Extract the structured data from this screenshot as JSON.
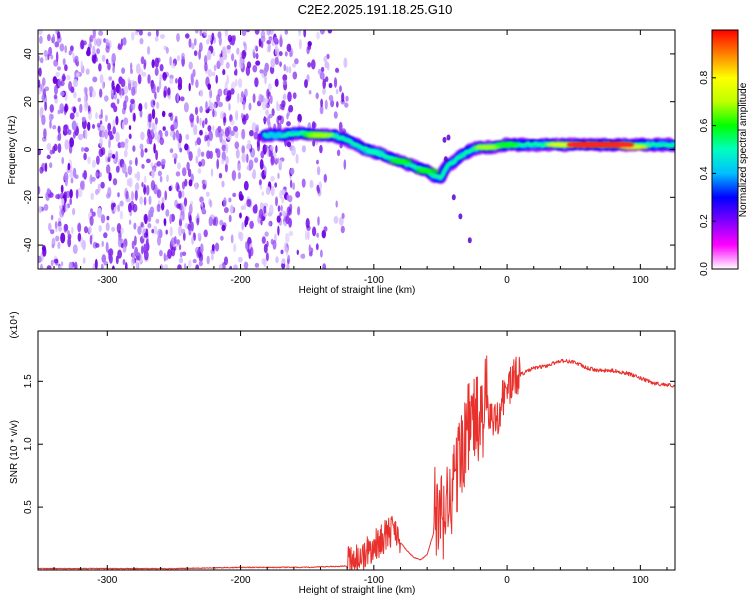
{
  "figure": {
    "title": "C2E2.2025.191.18.25.G10"
  },
  "chart_data": [
    {
      "type": "heatmap",
      "xlabel": "Height of straight line (km)",
      "ylabel": "Frequency (Hz)",
      "xlim": [
        -352,
        126
      ],
      "ylim": [
        -50,
        50
      ],
      "xticks": [
        -300,
        -200,
        -100,
        0,
        100
      ],
      "yticks": [
        -40,
        -20,
        0,
        20,
        40
      ],
      "grid": false,
      "colorbar": {
        "label": "Normalized spectral amplitude",
        "range": [
          0,
          1
        ],
        "ticks": [
          "0.0",
          "0.2",
          "0.4",
          "0.6",
          "0.8"
        ],
        "tick_values": [
          0.0,
          0.2,
          0.4,
          0.6,
          0.8
        ],
        "colors": [
          "#ffffff",
          "#ff00ff",
          "#7f00ff",
          "#0000ff",
          "#00bfff",
          "#00ffbf",
          "#00ff00",
          "#bfff00",
          "#ffff00",
          "#ff8000",
          "#ff0000"
        ]
      },
      "noise_region": {
        "x_from": -352,
        "x_to": -120,
        "colors": [
          "#6a00e0",
          "#8a30f0",
          "#b080f8",
          "#d8c0fc"
        ]
      },
      "ridge": [
        [
          -182,
          6
        ],
        [
          -170,
          6
        ],
        [
          -155,
          7
        ],
        [
          -140,
          6
        ],
        [
          -130,
          6
        ],
        [
          -120,
          4
        ],
        [
          -110,
          1
        ],
        [
          -100,
          -1
        ],
        [
          -90,
          -3
        ],
        [
          -80,
          -5
        ],
        [
          -70,
          -7
        ],
        [
          -60,
          -9
        ],
        [
          -55,
          -11
        ],
        [
          -50,
          -12
        ],
        [
          -45,
          -7
        ],
        [
          -40,
          -5
        ],
        [
          -35,
          -3
        ],
        [
          -30,
          -1
        ],
        [
          -20,
          1
        ],
        [
          -10,
          1
        ],
        [
          0,
          2
        ],
        [
          20,
          2
        ],
        [
          50,
          2
        ],
        [
          80,
          2
        ],
        [
          100,
          2
        ],
        [
          126,
          2
        ]
      ],
      "ridge_strong": [
        [
          -175,
          6,
          0.35
        ],
        [
          -145,
          6,
          0.55
        ],
        [
          -140,
          6,
          0.7
        ],
        [
          -100,
          -1,
          0.5
        ],
        [
          -80,
          -5,
          0.55
        ],
        [
          -60,
          -9,
          0.6
        ],
        [
          -15,
          1,
          0.7
        ],
        [
          0,
          2,
          0.6
        ],
        [
          40,
          2,
          0.8
        ],
        [
          60,
          2,
          0.95
        ],
        [
          80,
          2,
          0.95
        ],
        [
          95,
          1,
          0.8
        ]
      ],
      "spike_points": [
        [
          -47,
          4
        ],
        [
          -46,
          -4
        ],
        [
          -44,
          5
        ],
        [
          -40,
          -20
        ],
        [
          -35,
          -28
        ],
        [
          -28,
          -38
        ]
      ]
    },
    {
      "type": "line",
      "xlabel": "Height of straight line (km)",
      "ylabel": "SNR (10 * v/v)",
      "y_multiplier": "(x10⁴)",
      "xlim": [
        -352,
        126
      ],
      "ylim": [
        0,
        1.9
      ],
      "xticks": [
        -300,
        -200,
        -100,
        0,
        100
      ],
      "yticks": [
        "0.5",
        "1.0",
        "1.5"
      ],
      "ytick_values": [
        0.5,
        1.0,
        1.5
      ],
      "grid": false,
      "color": "#e8302c",
      "series": [
        {
          "x": [
            -352,
            -300,
            -250,
            -200,
            -150,
            -120,
            -110,
            -100,
            -95,
            -90,
            -85,
            -80,
            -75,
            -70,
            -65,
            -60,
            -55,
            -50,
            -45,
            -40,
            -35,
            -30,
            -25,
            -20,
            -15,
            -10,
            -5,
            0,
            5,
            10,
            20,
            30,
            40,
            50,
            60,
            70,
            80,
            90,
            100,
            110,
            126
          ],
          "y": [
            0.01,
            0.01,
            0.01,
            0.02,
            0.02,
            0.03,
            0.06,
            0.14,
            0.2,
            0.24,
            0.3,
            0.22,
            0.15,
            0.1,
            0.08,
            0.12,
            0.3,
            0.2,
            0.4,
            0.55,
            0.8,
            1.0,
            1.1,
            1.05,
            1.25,
            1.1,
            1.25,
            1.4,
            1.45,
            1.55,
            1.6,
            1.62,
            1.66,
            1.65,
            1.6,
            1.58,
            1.58,
            1.56,
            1.52,
            1.48,
            1.46
          ]
        }
      ],
      "noise": [
        {
          "x_from": -120,
          "x_to": -80,
          "amp": 0.22
        },
        {
          "x_from": -55,
          "x_to": -15,
          "amp": 0.75
        },
        {
          "x_from": -15,
          "x_to": 10,
          "amp": 0.35
        },
        {
          "x_from": 10,
          "x_to": 126,
          "amp": 0.03
        }
      ]
    }
  ]
}
